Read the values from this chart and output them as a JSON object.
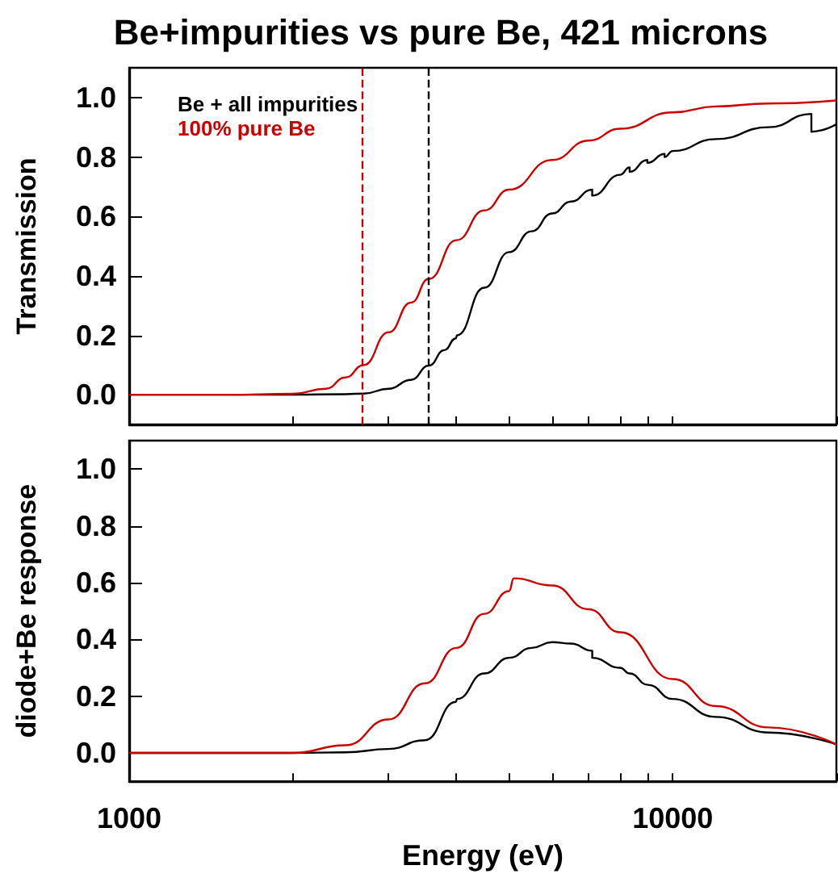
{
  "chart_data": [
    {
      "type": "line",
      "title": "Be+impurities vs pure Be, 421 microns",
      "ylabel": "Transmission",
      "log": "x",
      "marker": "none",
      "legend": "top left",
      "tick_labels": "y",
      "xlim": [
        1000,
        20000
      ],
      "xticks": [
        {
          "value": 1000,
          "label": null
        },
        {
          "value": 2000,
          "label": null
        },
        {
          "value": 3000,
          "label": null
        },
        {
          "value": 4000,
          "label": null
        },
        {
          "value": 5000,
          "label": null
        },
        {
          "value": 6000,
          "label": null
        },
        {
          "value": 7000,
          "label": null
        },
        {
          "value": 8000,
          "label": null
        },
        {
          "value": 9000,
          "label": null
        },
        {
          "value": 10000,
          "label": null
        },
        {
          "value": 20000,
          "label": null
        }
      ],
      "ylim": [
        -0.1,
        1.1
      ],
      "yticks": [
        {
          "value": 0,
          "label": "0.0"
        },
        {
          "value": 0.2,
          "label": "0.2"
        },
        {
          "value": 0.4,
          "label": "0.4"
        },
        {
          "value": 0.6,
          "label": "0.6"
        },
        {
          "value": 0.8,
          "label": "0.8"
        },
        {
          "value": 1,
          "label": "1.0"
        }
      ],
      "ref_lines": [
        {
          "axis": "x",
          "value": 2690,
          "color": "#cc0000",
          "line_style": "dashed"
        },
        {
          "axis": "x",
          "value": 3560,
          "color": "#000000",
          "line_style": "dashed"
        }
      ],
      "series": [
        {
          "name": "Be + all impurities",
          "color": "#000000",
          "x": [
            1000,
            1500,
            2000,
            2500,
            2700,
            3000,
            3300,
            3560,
            3800,
            3990,
            4010,
            4500,
            5000,
            5500,
            6000,
            6500,
            7110,
            7110,
            8000,
            8330,
            8330,
            8980,
            8980,
            9660,
            9660,
            10000,
            12000,
            15000,
            17990,
            17990,
            20000
          ],
          "values": [
            0,
            0,
            0,
            0.002,
            0.004,
            0.02,
            0.05,
            0.098,
            0.15,
            0.19,
            0.2,
            0.36,
            0.48,
            0.55,
            0.61,
            0.65,
            0.69,
            0.67,
            0.74,
            0.765,
            0.75,
            0.79,
            0.78,
            0.81,
            0.8,
            0.82,
            0.86,
            0.9,
            0.945,
            0.885,
            0.91
          ]
        },
        {
          "name": "100% pure Be",
          "color": "#cc0000",
          "x": [
            1000,
            1500,
            2000,
            2300,
            2500,
            2700,
            3000,
            3300,
            3560,
            4000,
            4500,
            5000,
            6000,
            7000,
            8000,
            10000,
            12000,
            15000,
            20000
          ],
          "values": [
            0,
            0,
            0.003,
            0.02,
            0.058,
            0.1,
            0.21,
            0.31,
            0.39,
            0.52,
            0.62,
            0.69,
            0.79,
            0.855,
            0.895,
            0.95,
            0.97,
            0.98,
            0.99
          ]
        }
      ]
    },
    {
      "type": "line",
      "xlabel": "Energy (eV)",
      "ylabel": "diode+Be response",
      "log": "x",
      "marker": "none",
      "xlim": [
        1000,
        20000
      ],
      "xticks": [
        {
          "value": 1000,
          "label": "1000"
        },
        {
          "value": 2000,
          "label": null
        },
        {
          "value": 3000,
          "label": null
        },
        {
          "value": 4000,
          "label": null
        },
        {
          "value": 5000,
          "label": null
        },
        {
          "value": 6000,
          "label": null
        },
        {
          "value": 7000,
          "label": null
        },
        {
          "value": 8000,
          "label": null
        },
        {
          "value": 9000,
          "label": null
        },
        {
          "value": 10000,
          "label": "10000"
        },
        {
          "value": 20000,
          "label": null
        }
      ],
      "ylim": [
        -0.1,
        1.1
      ],
      "yticks": [
        {
          "value": 0,
          "label": "0.0"
        },
        {
          "value": 0.2,
          "label": "0.2"
        },
        {
          "value": 0.4,
          "label": "0.4"
        },
        {
          "value": 0.6,
          "label": "0.6"
        },
        {
          "value": 0.8,
          "label": "0.8"
        },
        {
          "value": 1,
          "label": "1.0"
        }
      ],
      "series": [
        {
          "color": "#000000",
          "x": [
            1000,
            1500,
            2000,
            2500,
            3000,
            3500,
            3990,
            4010,
            4500,
            5000,
            5500,
            6000,
            6500,
            7110,
            7110,
            8000,
            8330,
            9000,
            10000,
            12000,
            15000,
            20000
          ],
          "values": [
            0,
            0,
            0,
            0.002,
            0.014,
            0.045,
            0.18,
            0.19,
            0.28,
            0.335,
            0.37,
            0.39,
            0.385,
            0.36,
            0.335,
            0.3,
            0.28,
            0.24,
            0.19,
            0.127,
            0.072,
            0.03
          ]
        },
        {
          "color": "#cc0000",
          "x": [
            1000,
            1500,
            2000,
            2500,
            3000,
            3500,
            4000,
            4500,
            5000,
            5100,
            6000,
            7000,
            8000,
            10000,
            12000,
            15000,
            20000
          ],
          "values": [
            0,
            0,
            0,
            0.027,
            0.118,
            0.245,
            0.37,
            0.49,
            0.57,
            0.615,
            0.59,
            0.506,
            0.425,
            0.26,
            0.165,
            0.09,
            0.03
          ]
        }
      ]
    }
  ]
}
